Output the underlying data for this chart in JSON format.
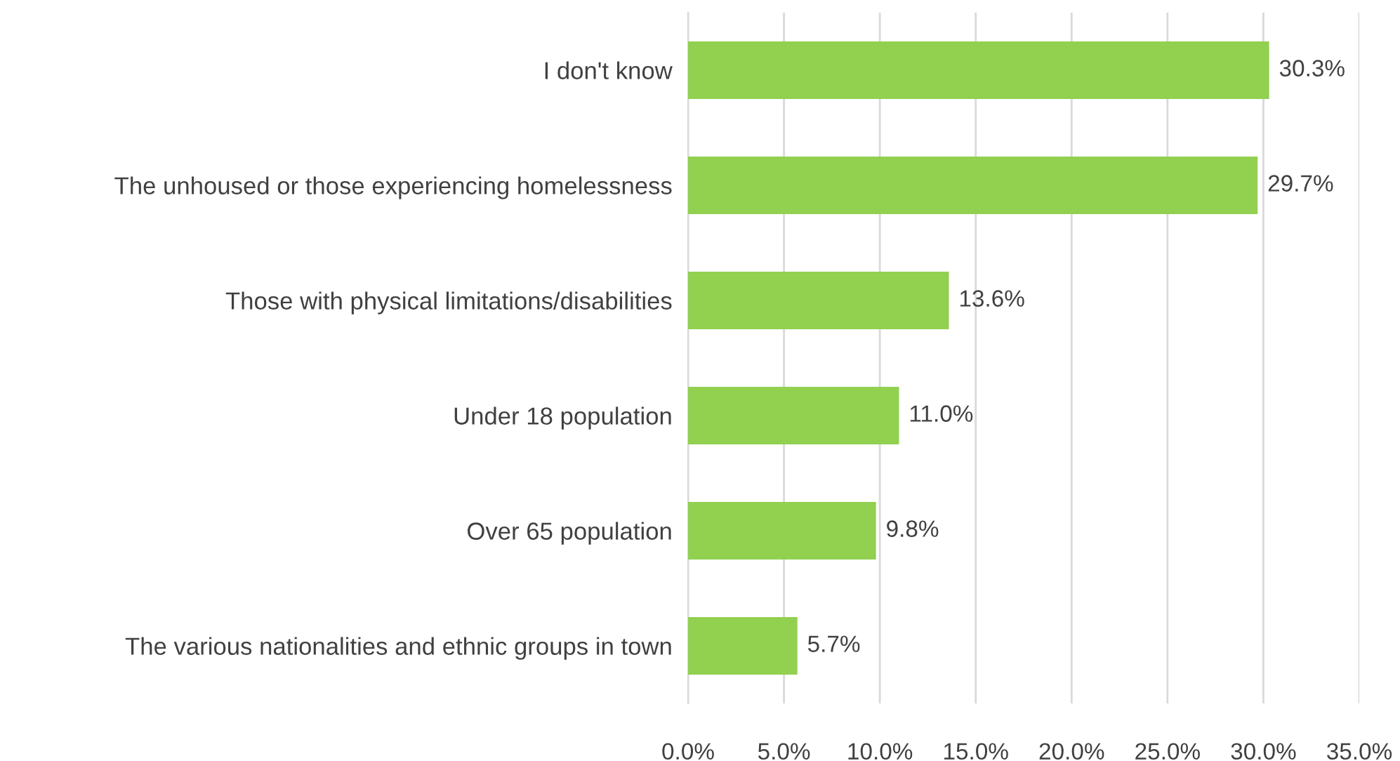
{
  "chart_data": {
    "type": "bar",
    "orientation": "horizontal",
    "categories": [
      "I don't know",
      "The unhoused or those experiencing homelessness",
      "Those with physical limitations/disabilities",
      "Under 18 population",
      "Over 65 population",
      "The various nationalities and ethnic groups in town"
    ],
    "values": [
      30.3,
      29.7,
      13.6,
      11.0,
      9.8,
      5.7
    ],
    "value_labels": [
      "30.3%",
      "29.7%",
      "13.6%",
      "11.0%",
      "9.8%",
      "5.7%"
    ],
    "color": "#92d050",
    "xlim": [
      0,
      35
    ],
    "xticks": [
      {
        "value": 0,
        "label": "0.0%"
      },
      {
        "value": 5,
        "label": "5.0%"
      },
      {
        "value": 10,
        "label": "10.0%"
      },
      {
        "value": 15,
        "label": "15.0%"
      },
      {
        "value": 20,
        "label": "20.0%"
      },
      {
        "value": 25,
        "label": "25.0%"
      },
      {
        "value": 30,
        "label": "30.0%"
      },
      {
        "value": 35,
        "label": "35.0%"
      }
    ],
    "grid": "x",
    "legend": false
  }
}
